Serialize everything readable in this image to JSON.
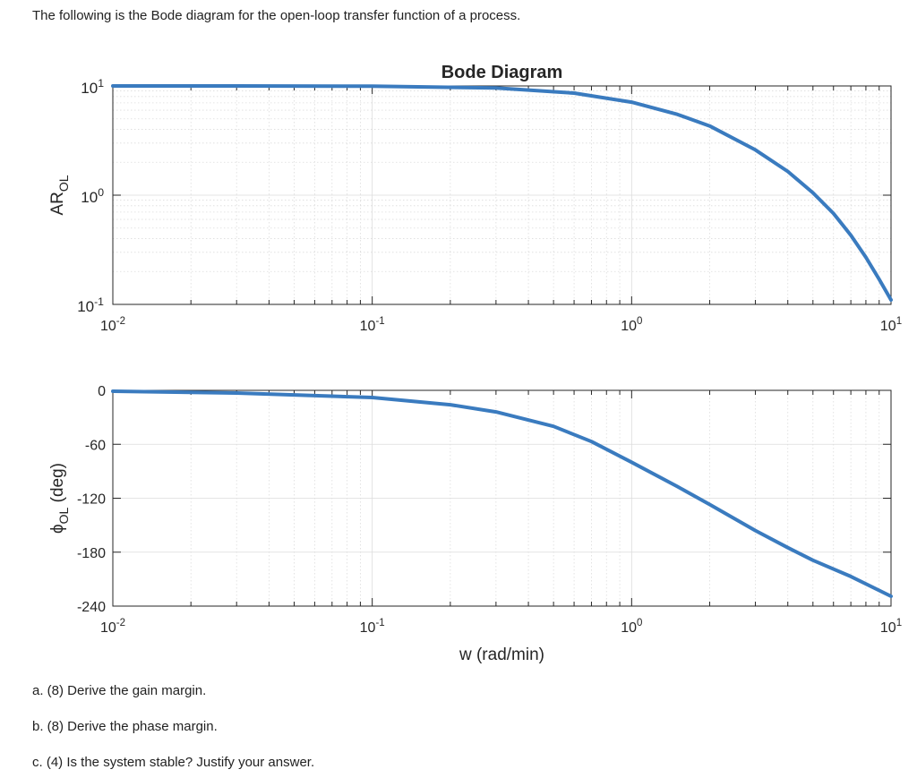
{
  "prompt": {
    "intro": "The following is the Bode diagram for the open-loop transfer function of a process.",
    "questions": [
      "a. (8) Derive the gain margin.",
      "b. (8) Derive the phase margin.",
      "c. (4) Is the system stable? Justify your answer."
    ]
  },
  "colors": {
    "line": "#3a7bbf",
    "axis": "#262626",
    "grid": "#dcdcdc"
  },
  "chart_data": [
    {
      "type": "line",
      "title": "Bode Diagram",
      "ylabel": "AR",
      "ylabel_sub": "OL",
      "xlabel": "",
      "xscale": "log",
      "yscale": "log",
      "xlim": [
        0.01,
        10
      ],
      "ylim": [
        0.1,
        10
      ],
      "xticks": [
        {
          "base": "10",
          "exp": "-2"
        },
        {
          "base": "10",
          "exp": "-1"
        },
        {
          "base": "10",
          "exp": "0"
        },
        {
          "base": "10",
          "exp": "1"
        }
      ],
      "yticks": [
        {
          "value": 10,
          "base": "10",
          "exp": "1"
        },
        {
          "value": 1,
          "base": "10",
          "exp": "0"
        },
        {
          "value": 0.1,
          "base": "10",
          "exp": "-1"
        }
      ],
      "grid": true,
      "series": [
        {
          "x": [
            0.01,
            0.03,
            0.1,
            0.3,
            0.6,
            1,
            1.5,
            2,
            3,
            4,
            5,
            6,
            7,
            8,
            9,
            10
          ],
          "y": [
            10,
            10,
            9.95,
            9.6,
            8.6,
            7.1,
            5.5,
            4.3,
            2.6,
            1.65,
            1.05,
            0.68,
            0.43,
            0.27,
            0.17,
            0.11
          ]
        }
      ]
    },
    {
      "type": "line",
      "title": "",
      "ylabel": "ϕ",
      "ylabel_sub": "OL",
      "ylabel_suffix": " (deg)",
      "xlabel": "w (rad/min)",
      "xscale": "log",
      "ylim": [
        -240,
        0
      ],
      "xlim": [
        0.01,
        10
      ],
      "xticks": [
        {
          "base": "10",
          "exp": "-2"
        },
        {
          "base": "10",
          "exp": "-1"
        },
        {
          "base": "10",
          "exp": "0"
        },
        {
          "base": "10",
          "exp": "1"
        }
      ],
      "yticks": [
        {
          "value": 0,
          "label": "0"
        },
        {
          "value": -60,
          "label": "-60"
        },
        {
          "value": -120,
          "label": "-120"
        },
        {
          "value": -180,
          "label": "-180"
        },
        {
          "value": -240,
          "label": "-240"
        }
      ],
      "grid": true,
      "series": [
        {
          "x": [
            0.01,
            0.03,
            0.1,
            0.2,
            0.3,
            0.5,
            0.7,
            1,
            1.5,
            2,
            3,
            4,
            5,
            7,
            10
          ],
          "y": [
            -1,
            -3,
            -8,
            -16,
            -24,
            -40,
            -57,
            -80,
            -107,
            -127,
            -156,
            -175,
            -189,
            -207,
            -229
          ]
        }
      ]
    }
  ]
}
